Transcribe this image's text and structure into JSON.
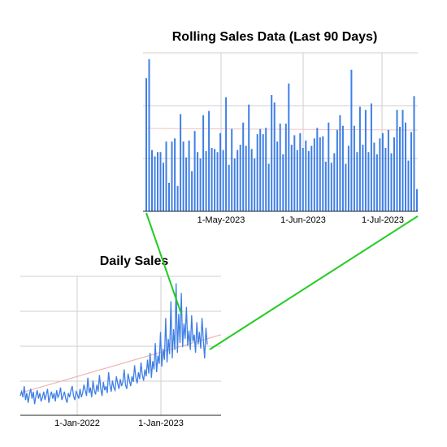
{
  "main_chart": {
    "title": "Daily Sales",
    "x_tick_labels": [
      "1-Jan-2022",
      "1-Jan-2023"
    ],
    "line_color": "#3f7fe6",
    "trend_color": "#f0b3b3"
  },
  "inset_chart": {
    "title": "Rolling Sales Data (Last 90 Days)",
    "x_tick_labels": [
      "1-May-2023",
      "1-Jun-2023",
      "1-Jul-2023"
    ],
    "bar_color": "#3f7fe6"
  },
  "connector_color": "#22cc22",
  "chart_data": [
    {
      "type": "line",
      "title": "Daily Sales",
      "x_range": [
        "2021-05-01",
        "2023-07-20"
      ],
      "x_ticks": [
        "1-Jan-2022",
        "1-Jan-2023"
      ],
      "grid": true,
      "series": [
        {
          "values": [
            14,
            17,
            13,
            21,
            11,
            16,
            9,
            15,
            19,
            12,
            17,
            8,
            14,
            18,
            12,
            16,
            10,
            13,
            17,
            11,
            15,
            19,
            9,
            14,
            17,
            12,
            16,
            10,
            18,
            13,
            15,
            20,
            11,
            14,
            17,
            12,
            9,
            16,
            13,
            18,
            21,
            14,
            11,
            17,
            15,
            12,
            19,
            13,
            16,
            22,
            18,
            14,
            27,
            16,
            20,
            13,
            25,
            18,
            15,
            22,
            17,
            29,
            19,
            14,
            24,
            18,
            21,
            16,
            31,
            22,
            17,
            25,
            20,
            18,
            28,
            23,
            19,
            26,
            21,
            24,
            33,
            22,
            19,
            30,
            25,
            21,
            28,
            24,
            36,
            27,
            23,
            31,
            26,
            38,
            29,
            25,
            33,
            28,
            40,
            30,
            45,
            27,
            39,
            33,
            52,
            31,
            43,
            37,
            60,
            35,
            48,
            40,
            70,
            38,
            55,
            44,
            82,
            41,
            62,
            47,
            95,
            45,
            73,
            52,
            88,
            49,
            66,
            55,
            78,
            50,
            61,
            47,
            72,
            53,
            58,
            45,
            67,
            51,
            60,
            48,
            70,
            54,
            41,
            63,
            51
          ],
          "trend": [
            16,
            58
          ]
        }
      ]
    },
    {
      "type": "bar",
      "title": "Rolling Sales Data (Last 90 Days)",
      "x_ticks": [
        "1-May-2023",
        "1-Jun-2023",
        "1-Jul-2023"
      ],
      "grid": true,
      "values": [
        126,
        144,
        58,
        52,
        56,
        56,
        46,
        66,
        27,
        66,
        69,
        24,
        92,
        66,
        51,
        67,
        38,
        76,
        56,
        50,
        91,
        57,
        95,
        60,
        59,
        56,
        74,
        58,
        108,
        44,
        78,
        50,
        58,
        63,
        84,
        62,
        101,
        59,
        50,
        73,
        78,
        73,
        79,
        45,
        110,
        103,
        66,
        83,
        54,
        83,
        121,
        63,
        72,
        58,
        74,
        60,
        67,
        57,
        62,
        69,
        79,
        70,
        71,
        47,
        84,
        46,
        55,
        77,
        91,
        81,
        45,
        62,
        134,
        81,
        56,
        99,
        63,
        96,
        56,
        102,
        65,
        54,
        69,
        74,
        60,
        77,
        55,
        70,
        96,
        80,
        96,
        84,
        48,
        75,
        109,
        21
      ]
    }
  ]
}
